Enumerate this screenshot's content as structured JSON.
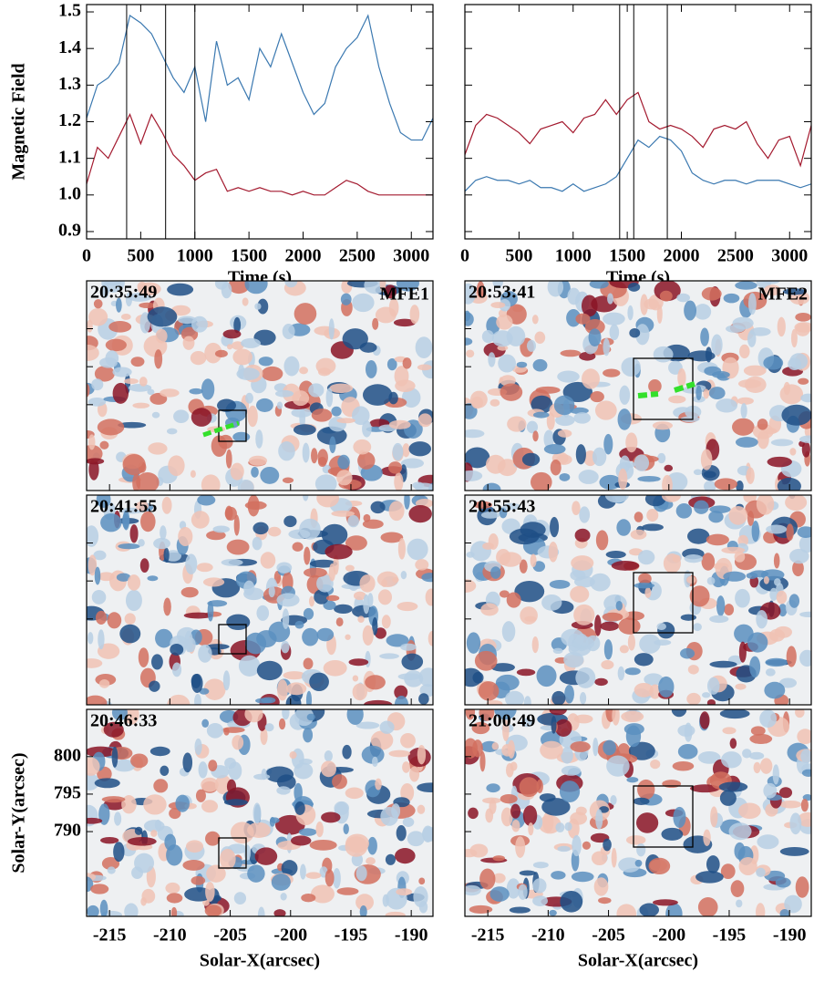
{
  "chart_data": [
    {
      "type": "line",
      "xlabel": "Time (s)",
      "ylabel": "Magnetic Field",
      "x": [
        0,
        100,
        200,
        300,
        400,
        500,
        600,
        700,
        800,
        900,
        1000,
        1100,
        1200,
        1300,
        1400,
        1500,
        1600,
        1700,
        1800,
        1900,
        2000,
        2100,
        2200,
        2300,
        2400,
        2500,
        2600,
        2700,
        2800,
        2900,
        3000,
        3100,
        3200
      ],
      "series": [
        {
          "color": "#3a78b0",
          "values": [
            1.21,
            1.3,
            1.32,
            1.36,
            1.49,
            1.47,
            1.44,
            1.38,
            1.32,
            1.28,
            1.35,
            1.2,
            1.42,
            1.3,
            1.32,
            1.26,
            1.4,
            1.35,
            1.44,
            1.36,
            1.28,
            1.22,
            1.25,
            1.35,
            1.4,
            1.43,
            1.49,
            1.35,
            1.25,
            1.17,
            1.15,
            1.15,
            1.21
          ]
        },
        {
          "color": "#a3192e",
          "values": [
            1.03,
            1.13,
            1.1,
            1.16,
            1.22,
            1.14,
            1.22,
            1.17,
            1.11,
            1.08,
            1.04,
            1.06,
            1.07,
            1.01,
            1.02,
            1.01,
            1.02,
            1.01,
            1.01,
            1.0,
            1.01,
            1.0,
            1.0,
            1.02,
            1.04,
            1.03,
            1.01,
            1.0,
            1.0,
            1.0,
            1.0,
            1.0,
            1.0
          ]
        }
      ],
      "markers": [
        370,
        730,
        1000
      ],
      "xlim": [
        0,
        3200
      ],
      "ylim": [
        0.88,
        1.52
      ],
      "xticks": [
        0,
        500,
        1000,
        1500,
        2000,
        2500,
        3000
      ],
      "yticks": [
        0.9,
        {
          "value": 1,
          "label": "1.0"
        },
        1.1,
        1.2,
        1.3,
        1.4,
        1.5
      ]
    },
    {
      "type": "line",
      "xlabel": "Time (s)",
      "x": [
        0,
        100,
        200,
        300,
        400,
        500,
        600,
        700,
        800,
        900,
        1000,
        1100,
        1200,
        1300,
        1400,
        1500,
        1600,
        1700,
        1800,
        1900,
        2000,
        2100,
        2200,
        2300,
        2400,
        2500,
        2600,
        2700,
        2800,
        2900,
        3000,
        3100,
        3200
      ],
      "series": [
        {
          "color": "#3a78b0",
          "values": [
            1.01,
            1.04,
            1.05,
            1.04,
            1.04,
            1.03,
            1.04,
            1.02,
            1.02,
            1.01,
            1.03,
            1.01,
            1.02,
            1.03,
            1.05,
            1.1,
            1.15,
            1.13,
            1.16,
            1.15,
            1.12,
            1.06,
            1.04,
            1.03,
            1.04,
            1.04,
            1.03,
            1.04,
            1.04,
            1.04,
            1.03,
            1.02,
            1.03
          ]
        },
        {
          "color": "#a3192e",
          "values": [
            1.11,
            1.19,
            1.22,
            1.21,
            1.19,
            1.17,
            1.14,
            1.18,
            1.19,
            1.2,
            1.17,
            1.21,
            1.22,
            1.26,
            1.22,
            1.26,
            1.28,
            1.2,
            1.18,
            1.19,
            1.18,
            1.16,
            1.13,
            1.18,
            1.19,
            1.18,
            1.2,
            1.14,
            1.1,
            1.15,
            1.16,
            1.08,
            1.19
          ]
        }
      ],
      "markers": [
        1430,
        1560,
        1870
      ],
      "xlim": [
        0,
        3200
      ],
      "ylim": [
        0.88,
        1.52
      ],
      "xticks": [
        0,
        500,
        1000,
        1500,
        2000,
        2500,
        3000
      ],
      "yticks": [
        0.9,
        1,
        1.1,
        1.2,
        1.3,
        1.4,
        1.5
      ]
    },
    {
      "type": "image",
      "xlabel": "Solar-X(arcsec)",
      "ylabel": "Solar-Y(arcsec)",
      "panels": [
        {
          "time": "20:35:49",
          "tag": "MFE1"
        },
        {
          "time": "20:53:41",
          "tag": "MFE2"
        },
        {
          "time": "20:41:55"
        },
        {
          "time": "20:55:43"
        },
        {
          "time": "20:46:33"
        },
        {
          "time": "21:00:49"
        }
      ],
      "xlim": [
        -216.9,
        -188.2
      ],
      "ylim": [
        778.7,
        806.3
      ],
      "xticks": [
        -215,
        -210,
        -205,
        -200,
        -195,
        -190
      ],
      "yticks": [
        790,
        795,
        800
      ]
    }
  ]
}
